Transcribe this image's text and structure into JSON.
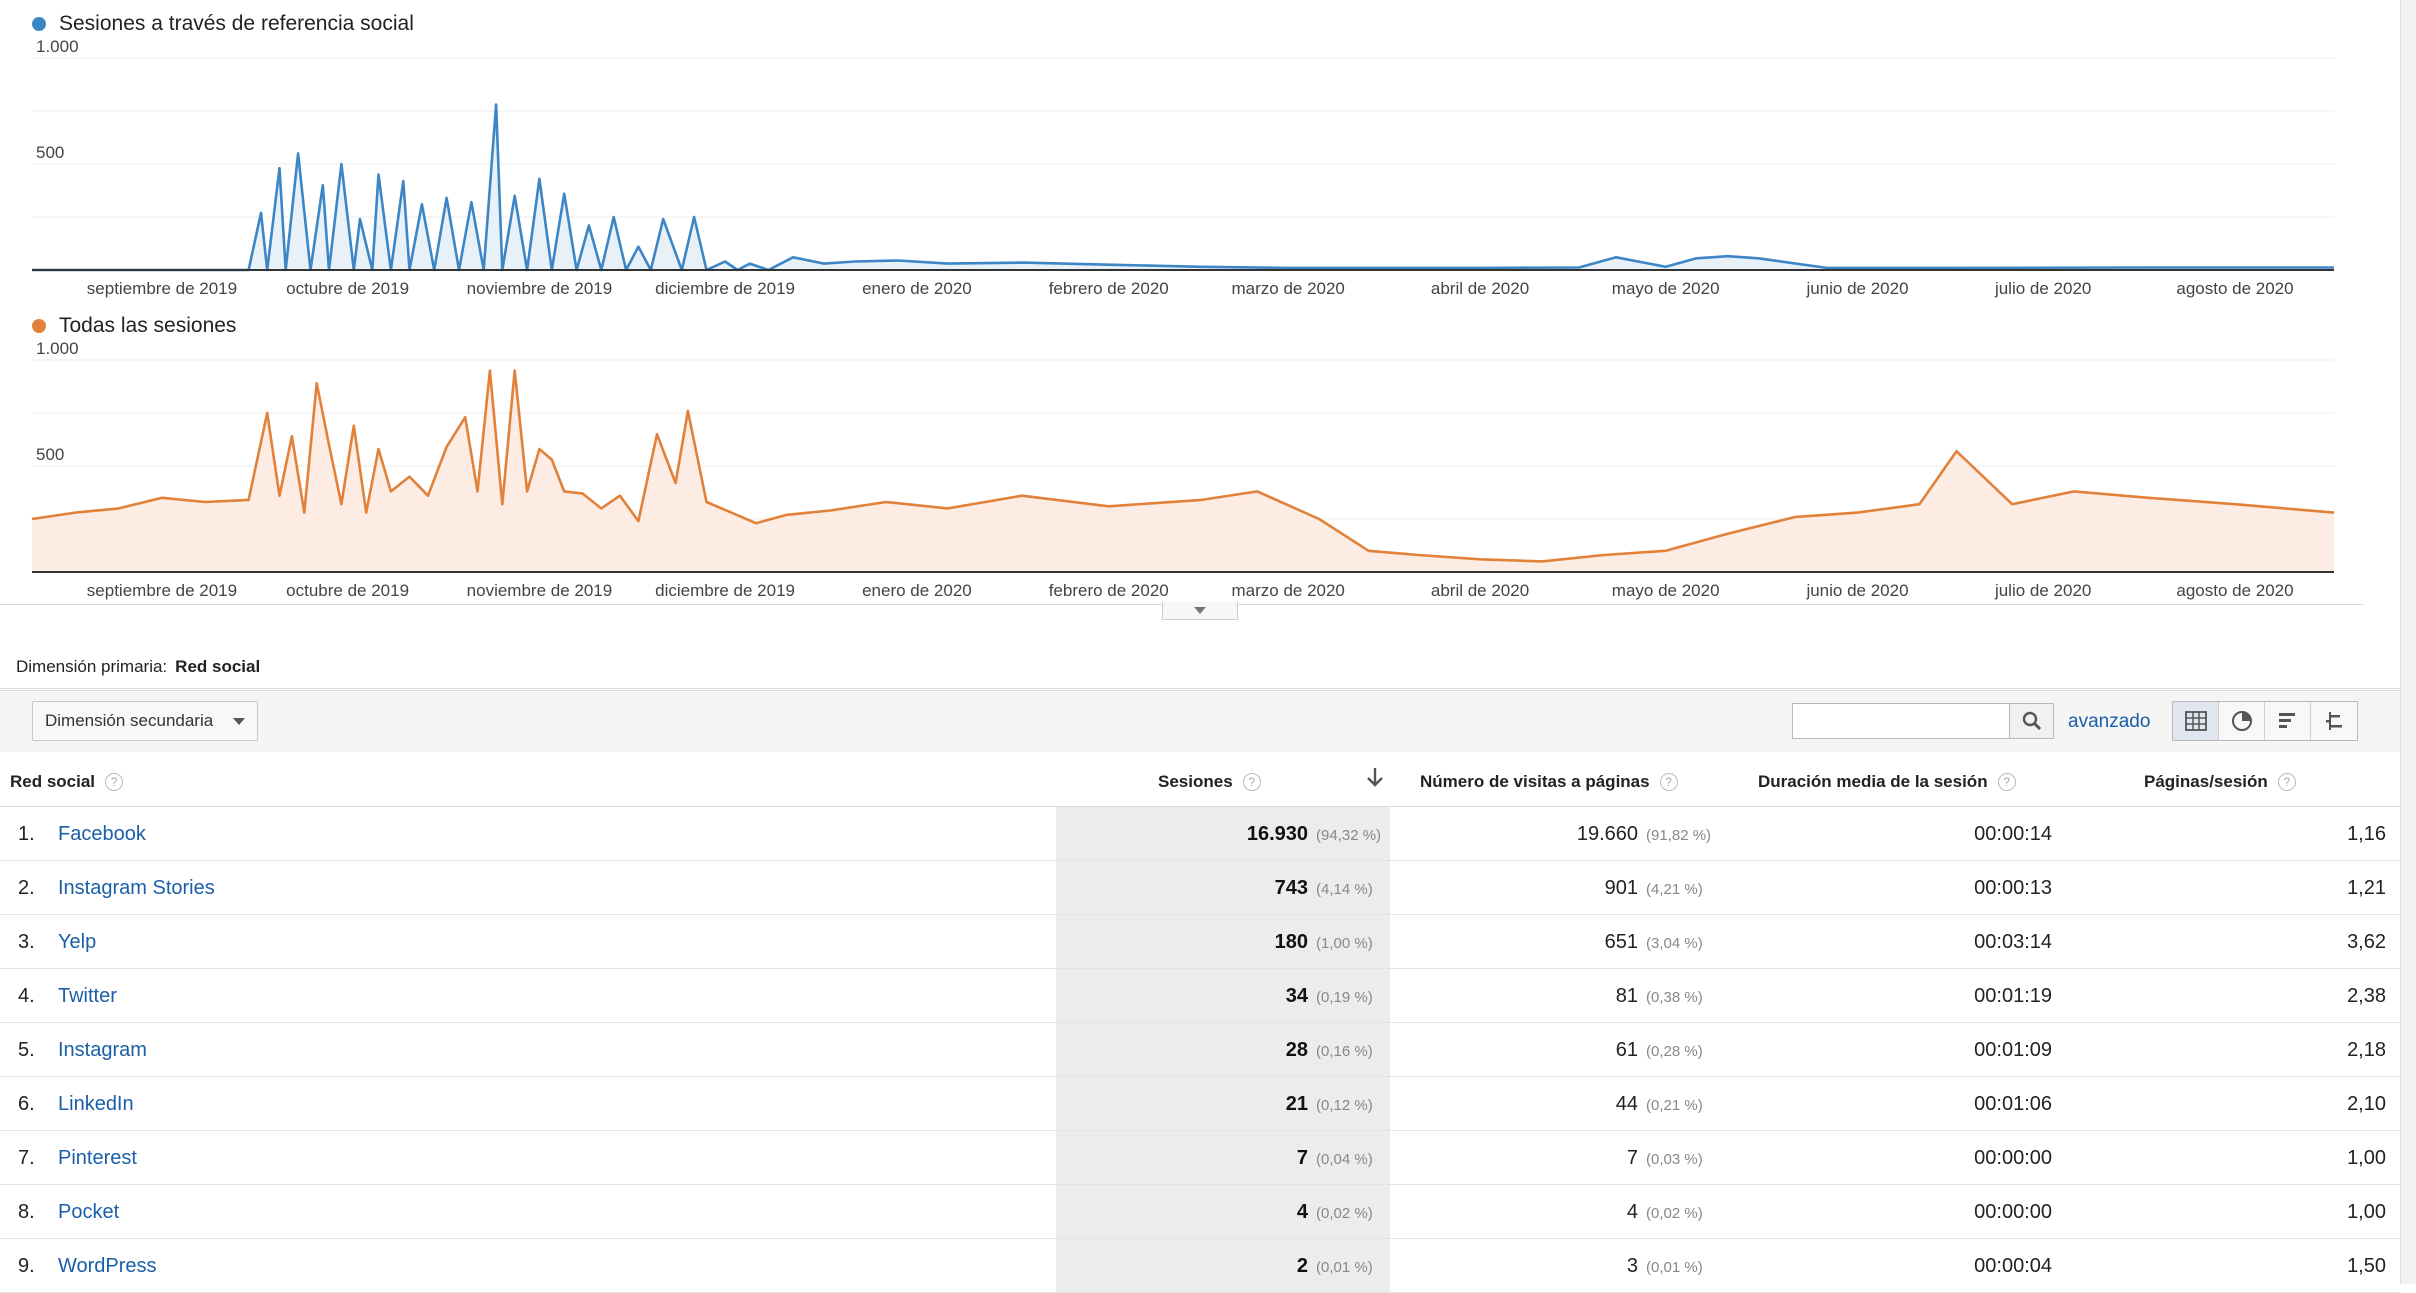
{
  "charts": [
    {
      "title": "Sesiones a través de referencia social",
      "color": "#3d86c6",
      "fill": "#e9f1f8",
      "y_ticks": [
        "1.000",
        "500"
      ],
      "x_ticks": [
        "septiembre de 2019",
        "octubre de 2019",
        "noviembre de 2019",
        "diciembre de 2019",
        "enero de 2020",
        "febrero de 2020",
        "marzo de 2020",
        "abril de 2020",
        "mayo de 2020",
        "junio de 2020",
        "julio de 2020",
        "agosto de 2020"
      ]
    },
    {
      "title": "Todas las sesiones",
      "color": "#e1813a",
      "fill": "#fcece3",
      "y_ticks": [
        "1.000",
        "500"
      ],
      "x_ticks": [
        "septiembre de 2019",
        "octubre de 2019",
        "noviembre de 2019",
        "diciembre de 2019",
        "enero de 2020",
        "febrero de 2020",
        "marzo de 2020",
        "abril de 2020",
        "mayo de 2020",
        "junio de 2020",
        "julio de 2020",
        "agosto de 2020"
      ]
    }
  ],
  "chart_data": [
    {
      "type": "area",
      "title": "Sesiones a través de referencia social",
      "ylim": [
        0,
        1000
      ],
      "x_range": [
        "2019-08-25",
        "2020-08-31"
      ],
      "series": [
        {
          "name": "Sesiones a través de referencia social",
          "x": [
            "2019-08-25",
            "2019-09-20",
            "2019-09-29",
            "2019-10-01",
            "2019-10-02",
            "2019-10-04",
            "2019-10-05",
            "2019-10-07",
            "2019-10-09",
            "2019-10-11",
            "2019-10-12",
            "2019-10-14",
            "2019-10-16",
            "2019-10-17",
            "2019-10-19",
            "2019-10-20",
            "2019-10-22",
            "2019-10-24",
            "2019-10-25",
            "2019-10-27",
            "2019-10-29",
            "2019-10-31",
            "2019-11-02",
            "2019-11-04",
            "2019-11-06",
            "2019-11-08",
            "2019-11-09",
            "2019-11-11",
            "2019-11-13",
            "2019-11-15",
            "2019-11-17",
            "2019-11-19",
            "2019-11-21",
            "2019-11-23",
            "2019-11-25",
            "2019-11-27",
            "2019-11-29",
            "2019-12-01",
            "2019-12-03",
            "2019-12-05",
            "2019-12-08",
            "2019-12-10",
            "2019-12-12",
            "2019-12-15",
            "2019-12-17",
            "2019-12-19",
            "2019-12-22",
            "2019-12-26",
            "2019-12-31",
            "2020-01-05",
            "2020-01-12",
            "2020-01-20",
            "2020-02-01",
            "2020-02-15",
            "2020-03-01",
            "2020-03-15",
            "2020-04-01",
            "2020-04-15",
            "2020-05-01",
            "2020-05-07",
            "2020-05-15",
            "2020-05-20",
            "2020-05-25",
            "2020-05-30",
            "2020-06-10",
            "2020-07-01",
            "2020-08-01",
            "2020-08-31"
          ],
          "values": [
            0,
            0,
            0,
            270,
            0,
            480,
            0,
            550,
            0,
            400,
            0,
            500,
            0,
            240,
            0,
            450,
            0,
            420,
            0,
            310,
            0,
            340,
            0,
            320,
            0,
            780,
            0,
            350,
            0,
            430,
            0,
            360,
            0,
            210,
            0,
            250,
            0,
            110,
            0,
            240,
            0,
            250,
            0,
            40,
            0,
            30,
            0,
            60,
            30,
            40,
            45,
            30,
            35,
            25,
            15,
            10,
            10,
            10,
            12,
            60,
            15,
            55,
            65,
            55,
            10,
            10,
            12,
            12
          ]
        }
      ]
    },
    {
      "type": "area",
      "title": "Todas las sesiones",
      "ylim": [
        0,
        1000
      ],
      "x_range": [
        "2019-08-25",
        "2020-08-31"
      ],
      "series": [
        {
          "name": "Todas las sesiones",
          "x": [
            "2019-08-25",
            "2019-09-01",
            "2019-09-08",
            "2019-09-15",
            "2019-09-22",
            "2019-09-29",
            "2019-10-02",
            "2019-10-04",
            "2019-10-06",
            "2019-10-08",
            "2019-10-10",
            "2019-10-12",
            "2019-10-14",
            "2019-10-16",
            "2019-10-18",
            "2019-10-20",
            "2019-10-22",
            "2019-10-25",
            "2019-10-28",
            "2019-10-31",
            "2019-11-03",
            "2019-11-05",
            "2019-11-07",
            "2019-11-09",
            "2019-11-11",
            "2019-11-13",
            "2019-11-15",
            "2019-11-17",
            "2019-11-19",
            "2019-11-22",
            "2019-11-25",
            "2019-11-28",
            "2019-12-01",
            "2019-12-04",
            "2019-12-07",
            "2019-12-09",
            "2019-12-12",
            "2019-12-16",
            "2019-12-20",
            "2019-12-25",
            "2020-01-01",
            "2020-01-10",
            "2020-01-20",
            "2020-02-01",
            "2020-02-15",
            "2020-03-01",
            "2020-03-10",
            "2020-03-20",
            "2020-03-28",
            "2020-04-05",
            "2020-04-15",
            "2020-04-25",
            "2020-05-05",
            "2020-05-15",
            "2020-05-25",
            "2020-06-05",
            "2020-06-15",
            "2020-06-25",
            "2020-07-01",
            "2020-07-10",
            "2020-07-20",
            "2020-08-01",
            "2020-08-15",
            "2020-08-31"
          ],
          "values": [
            250,
            280,
            300,
            350,
            330,
            340,
            750,
            360,
            640,
            280,
            890,
            600,
            320,
            690,
            280,
            580,
            380,
            450,
            360,
            590,
            730,
            380,
            950,
            320,
            950,
            380,
            580,
            530,
            380,
            370,
            300,
            360,
            240,
            650,
            420,
            760,
            330,
            280,
            230,
            270,
            290,
            330,
            300,
            360,
            310,
            340,
            380,
            250,
            100,
            80,
            60,
            50,
            80,
            100,
            180,
            260,
            280,
            320,
            570,
            320,
            380,
            350,
            320,
            280
          ]
        }
      ]
    }
  ],
  "primary_dimension": {
    "label": "Dimensión primaria:",
    "value": "Red social"
  },
  "toolbar": {
    "secondary_dimension": "Dimensión secundaria",
    "advanced": "avanzado",
    "search_value": ""
  },
  "table": {
    "headers": {
      "social": "Red social",
      "sessions": "Sesiones",
      "pageviews": "Número de visitas a páginas",
      "duration": "Duración media de la sesión",
      "pages_per_session": "Páginas/sesión"
    },
    "rows": [
      {
        "idx": "1.",
        "name": "Facebook",
        "sessions": "16.930",
        "sessions_pct": "(94,32 %)",
        "pageviews": "19.660",
        "pageviews_pct": "(91,82 %)",
        "duration": "00:00:14",
        "pps": "1,16"
      },
      {
        "idx": "2.",
        "name": "Instagram Stories",
        "sessions": "743",
        "sessions_pct": "(4,14 %)",
        "pageviews": "901",
        "pageviews_pct": "(4,21 %)",
        "duration": "00:00:13",
        "pps": "1,21"
      },
      {
        "idx": "3.",
        "name": "Yelp",
        "sessions": "180",
        "sessions_pct": "(1,00 %)",
        "pageviews": "651",
        "pageviews_pct": "(3,04 %)",
        "duration": "00:03:14",
        "pps": "3,62"
      },
      {
        "idx": "4.",
        "name": "Twitter",
        "sessions": "34",
        "sessions_pct": "(0,19 %)",
        "pageviews": "81",
        "pageviews_pct": "(0,38 %)",
        "duration": "00:01:19",
        "pps": "2,38"
      },
      {
        "idx": "5.",
        "name": "Instagram",
        "sessions": "28",
        "sessions_pct": "(0,16 %)",
        "pageviews": "61",
        "pageviews_pct": "(0,28 %)",
        "duration": "00:01:09",
        "pps": "2,18"
      },
      {
        "idx": "6.",
        "name": "LinkedIn",
        "sessions": "21",
        "sessions_pct": "(0,12 %)",
        "pageviews": "44",
        "pageviews_pct": "(0,21 %)",
        "duration": "00:01:06",
        "pps": "2,10"
      },
      {
        "idx": "7.",
        "name": "Pinterest",
        "sessions": "7",
        "sessions_pct": "(0,04 %)",
        "pageviews": "7",
        "pageviews_pct": "(0,03 %)",
        "duration": "00:00:00",
        "pps": "1,00"
      },
      {
        "idx": "8.",
        "name": "Pocket",
        "sessions": "4",
        "sessions_pct": "(0,02 %)",
        "pageviews": "4",
        "pageviews_pct": "(0,02 %)",
        "duration": "00:00:00",
        "pps": "1,00"
      },
      {
        "idx": "9.",
        "name": "WordPress",
        "sessions": "2",
        "sessions_pct": "(0,01 %)",
        "pageviews": "3",
        "pageviews_pct": "(0,01 %)",
        "duration": "00:00:04",
        "pps": "1,50"
      }
    ]
  }
}
